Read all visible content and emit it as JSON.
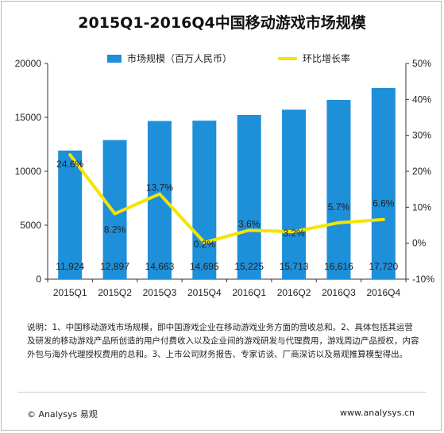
{
  "chart_data": {
    "type": "bar",
    "title": "2015Q1-2016Q4中国移动游戏市场规模",
    "categories": [
      "2015Q1",
      "2015Q2",
      "2015Q3",
      "2015Q4",
      "2016Q1",
      "2016Q2",
      "2016Q3",
      "2016Q4"
    ],
    "series": [
      {
        "name": "市场规模（百万人民币）",
        "type": "bar",
        "axis": "left",
        "values": [
          11924,
          12897,
          14663,
          14695,
          15225,
          15713,
          16616,
          17720
        ],
        "labels": [
          "11,924",
          "12,897",
          "14,663",
          "14,695",
          "15,225",
          "15,713",
          "16,616",
          "17,720"
        ],
        "color": "#1e8fd9"
      },
      {
        "name": "环比增长率",
        "type": "line",
        "axis": "right",
        "values": [
          24.6,
          8.2,
          13.7,
          0.2,
          3.6,
          3.2,
          5.7,
          6.6
        ],
        "labels": [
          "24.6%",
          "8.2%",
          "13.7%",
          "0.2%",
          "3.6%",
          "3.2%",
          "5.7%",
          "6.6%"
        ],
        "color": "#f5e400"
      }
    ],
    "y_left": {
      "min": 0,
      "max": 20000,
      "ticks": [
        "0",
        "5000",
        "10000",
        "15000",
        "20000"
      ]
    },
    "y_right": {
      "min": -10,
      "max": 50,
      "ticks": [
        "-10%",
        "0%",
        "10%",
        "20%",
        "30%",
        "40%",
        "50%"
      ]
    },
    "grid": false,
    "legend_position": "top"
  },
  "note": "说明：1、中国移动游戏市场规模，即中国游戏企业在移动游戏业务方面的营收总和。2、具体包括其运营及研发的移动游戏产品所创造的用户付费收入以及企业间的游戏研发与代理费用，游戏周边产品授权，内容外包与海外代理授权费用的总和。3、上市公司财务报告、专家访谈、厂商深访以及易观推算模型得出。",
  "footer": {
    "copyright": "© Analysys 易观",
    "url": "www.analysys.cn"
  }
}
